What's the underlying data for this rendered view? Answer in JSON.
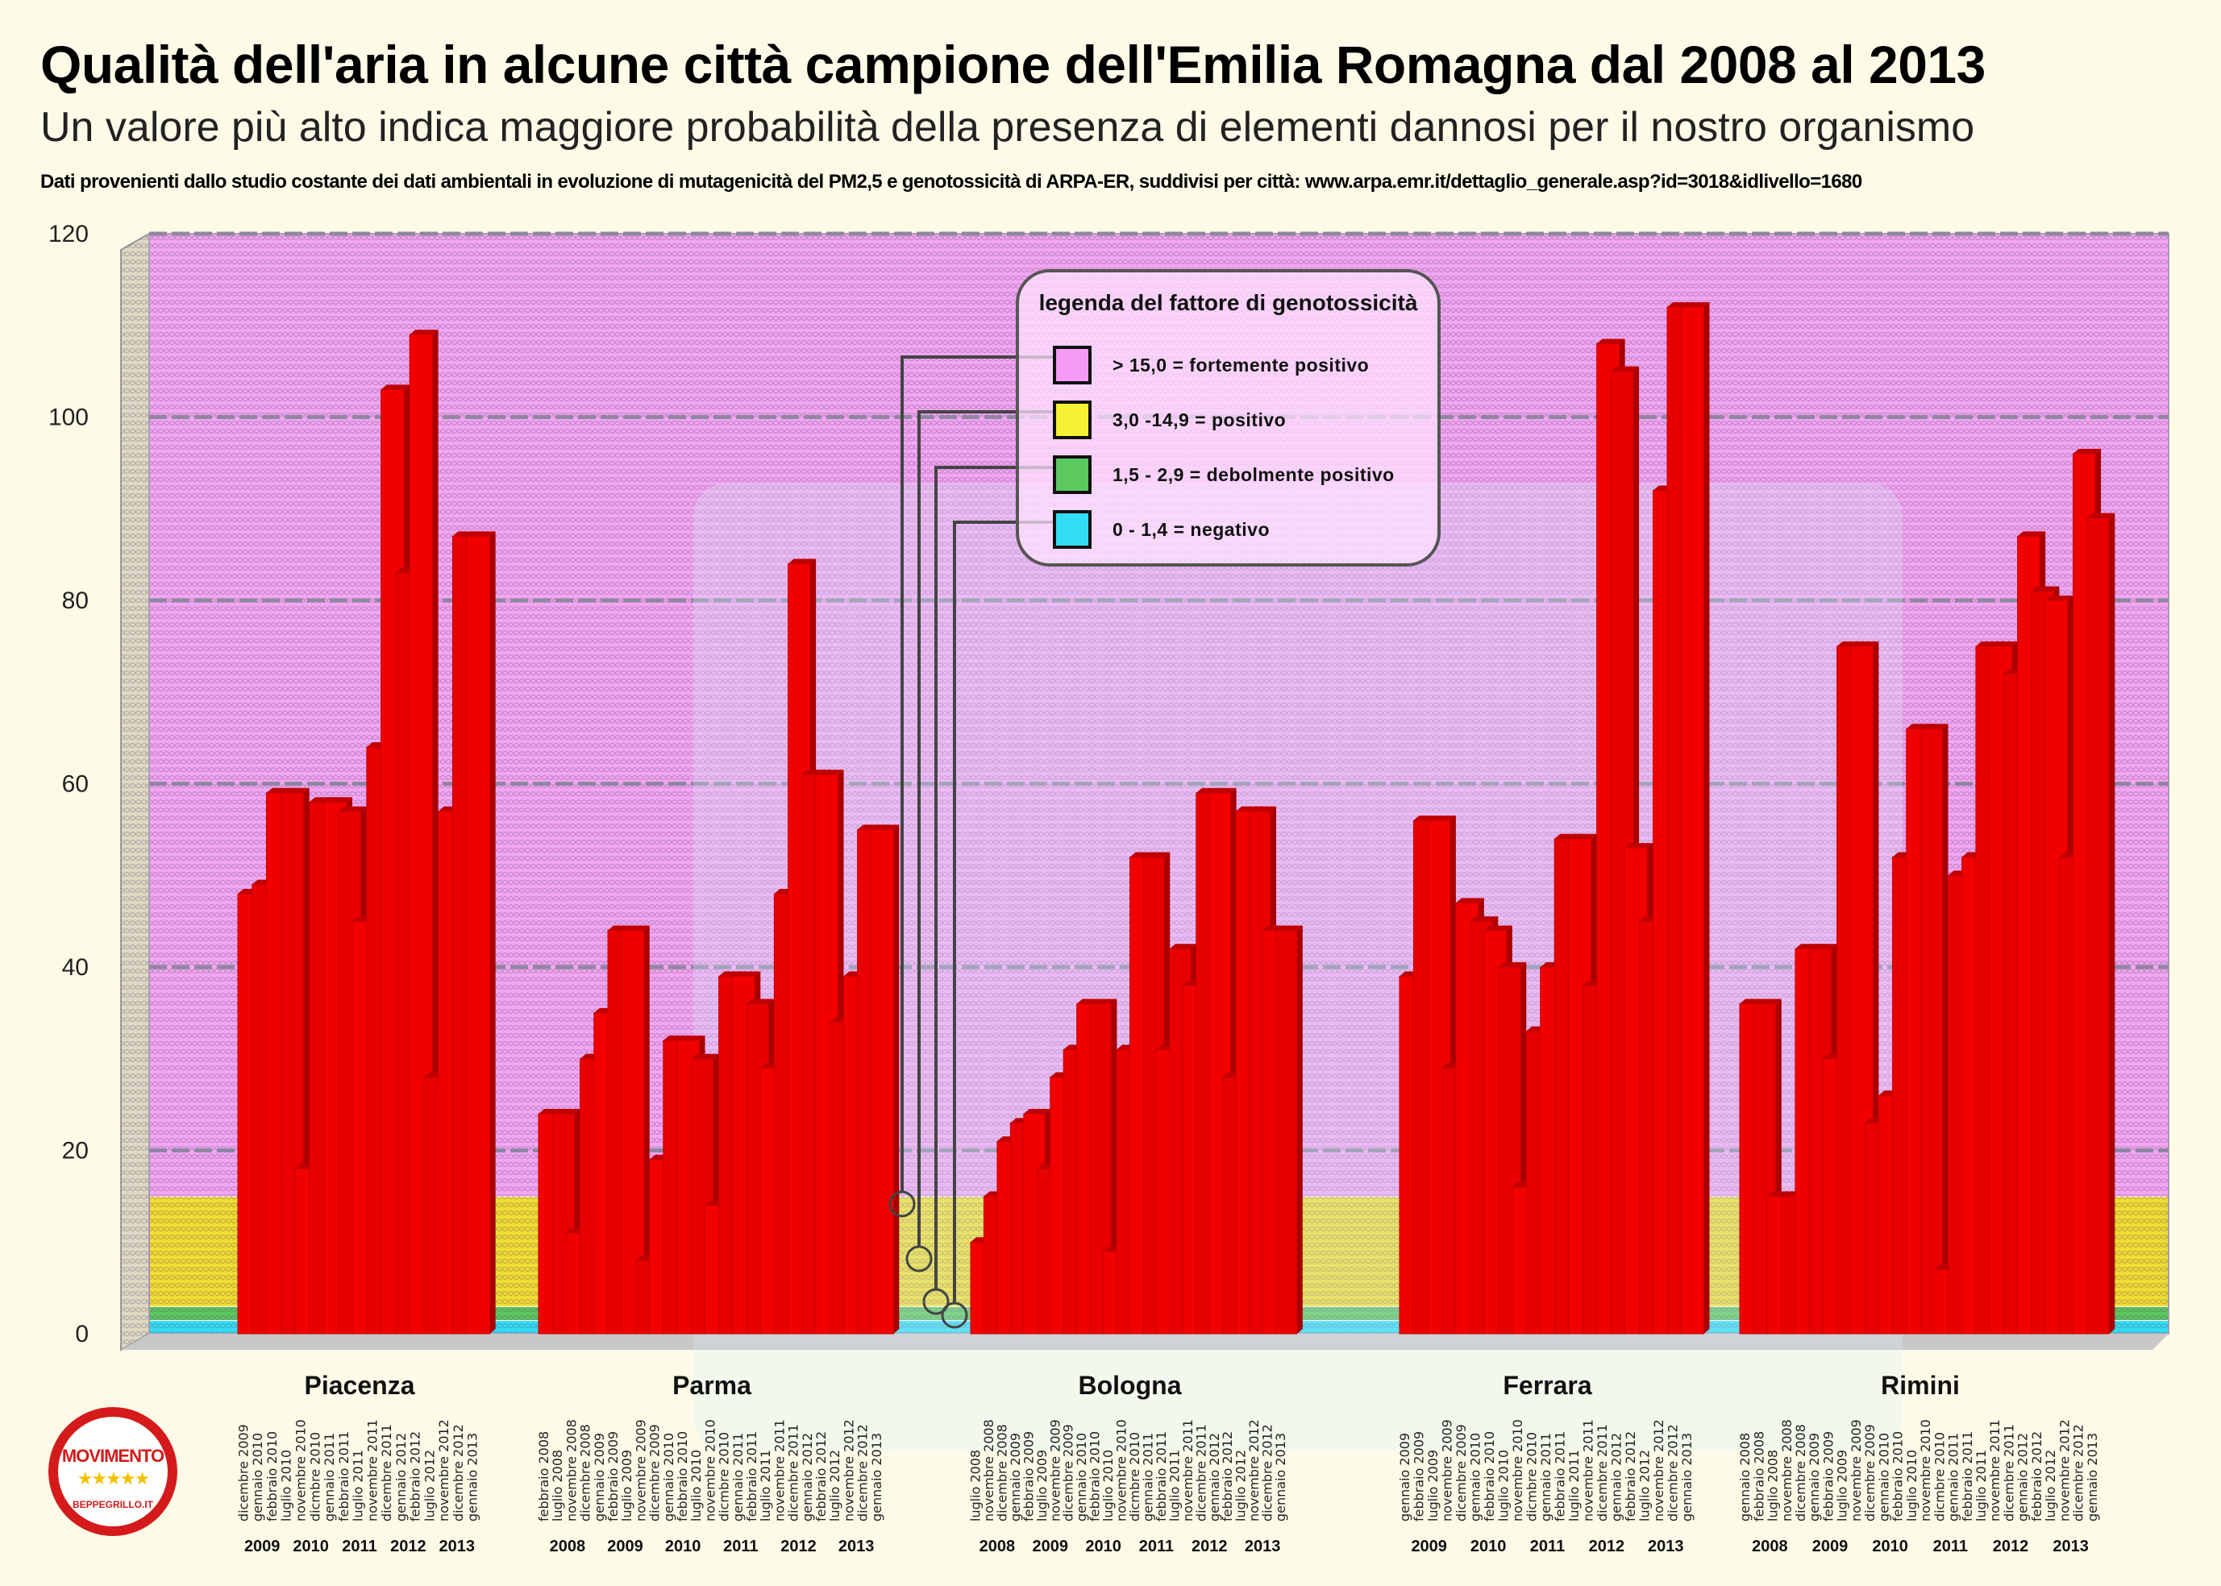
{
  "header": {
    "title": "Qualità  dell'aria in alcune città  campione dell'Emilia Romagna dal 2008 al 2013",
    "subtitle": "Un valore più alto indica maggiore probabilità della presenza di elementi dannosi per il nostro organismo",
    "source": "Dati provenienti dallo studio costante dei dati ambientali in evoluzione di mutagenicità  del PM2,5 e genotossicità  di ARPA-ER, suddivisi per città: www.arpa.emr.it/dettaglio_generale.asp?id=3018&idlivello=1680"
  },
  "legend": {
    "title": "legenda del fattore di genotossicità",
    "items": [
      {
        "label": "> 15,0 = fortemente positivo",
        "color": "#f59af5"
      },
      {
        "label": "3,0 -14,9 = positivo",
        "color": "#f4f232"
      },
      {
        "label": "1,5 - 2,9 = debolmente positivo",
        "color": "#5cc860"
      },
      {
        "label": "0 - 1,4 = negativo",
        "color": "#33ddf5"
      }
    ]
  },
  "logo": {
    "text": "MOVIMENTO",
    "sub": "BEPPEGRILLO.IT"
  },
  "chart_data": {
    "type": "bar",
    "title": "Qualità dell'aria in alcune città campione dell'Emilia Romagna dal 2008 al 2013",
    "ylabel": "",
    "ylim": [
      0,
      120
    ],
    "yticks": [
      0,
      20,
      40,
      60,
      80,
      100,
      120
    ],
    "grid": true,
    "bands": [
      {
        "from": 0,
        "to": 1.4,
        "color": "#33ddf5"
      },
      {
        "from": 1.5,
        "to": 2.9,
        "color": "#5cc860"
      },
      {
        "from": 3.0,
        "to": 14.9,
        "color": "#eedd33"
      },
      {
        "from": 15.0,
        "to": 120,
        "color": "#f2a6f2"
      }
    ],
    "bar_color": "#ee0000",
    "cities": [
      {
        "name": "Piacenza",
        "labels": [
          "dicembre 2009",
          "gennaio 2010",
          "febbraio 2010",
          "luglio 2010",
          "novembre 2010",
          "dicmbre 2010",
          "gennaio 2011",
          "febbraio 2011",
          "luglio 2011",
          "novembre 2011",
          "dicembre 2011",
          "gennaio 2012",
          "febbraio 2012",
          "luglio 2012",
          "novembre 2012",
          "dicembre 2012",
          "gennaio 2013"
        ],
        "values": [
          48,
          49,
          59,
          59,
          18,
          58,
          58,
          57,
          45,
          64,
          103,
          83,
          109,
          28,
          57,
          87,
          87
        ],
        "years": [
          "2009",
          "2010",
          "2011",
          "2012",
          "2013"
        ]
      },
      {
        "name": "Parma",
        "labels": [
          "febbraio 2008",
          "luglio 2008",
          "novembre 2008",
          "dicembre 2008",
          "gennaio 2009",
          "febbraio 2009",
          "luglio 2009",
          "novembre 2009",
          "dicembre 2009",
          "gennaio 2010",
          "febbraio 2010",
          "luglio 2010",
          "novembre 2010",
          "dicmbre 2010",
          "gennaio 2011",
          "febbraio 2011",
          "luglio 2011",
          "novembre 2011",
          "dicembre 2011",
          "gennaio 2012",
          "febbraio 2012",
          "luglio 2012",
          "novembre 2012",
          "dicembre 2012",
          "gennaio 2013"
        ],
        "values": [
          24,
          24,
          11,
          30,
          35,
          44,
          44,
          8,
          19,
          32,
          32,
          30,
          14,
          39,
          39,
          36,
          29,
          48,
          84,
          61,
          61,
          34,
          39,
          55,
          55
        ],
        "years": [
          "2008",
          "2009",
          "2010",
          "2011",
          "2012",
          "2013"
        ]
      },
      {
        "name": "Bologna",
        "labels": [
          "luglio 2008",
          "novembre 2008",
          "dicembre 2008",
          "gennaio 2009",
          "febbraio 2009",
          "luglio 2009",
          "novembre 2009",
          "dicembre 2009",
          "gennaio 2010",
          "febbraio 2010",
          "luglio 2010",
          "novembre 2010",
          "dicmbre 2010",
          "gennaio 2011",
          "febbraio 2011",
          "luglio 2011",
          "novembre 2011",
          "dicembre 2011",
          "gennaio 2012",
          "febbraio 2012",
          "luglio 2012",
          "novembre 2012",
          "dicembre 2012",
          "gennaio 2013"
        ],
        "values": [
          10,
          15,
          21,
          23,
          24,
          18,
          28,
          31,
          36,
          36,
          9,
          31,
          52,
          52,
          31,
          42,
          38,
          59,
          59,
          28,
          57,
          57,
          44,
          44
        ],
        "years": [
          "2008",
          "2009",
          "2010",
          "2011",
          "2012",
          "2013"
        ]
      },
      {
        "name": "Ferrara",
        "labels": [
          "gennaio 2009",
          "febbraio 2009",
          "luglio 2009",
          "novembre 2009",
          "dicembre 2009",
          "gennaio 2010",
          "febbraio 2010",
          "luglio 2010",
          "novembre 2010",
          "dicmbre 2010",
          "gennaio 2011",
          "febbraio 2011",
          "luglio 2011",
          "novembre 2011",
          "dicembre 2011",
          "gennaio 2012",
          "febbraio 2012",
          "luglio 2012",
          "novembre 2012",
          "dicembre 2012",
          "gennaio 2013"
        ],
        "values": [
          39,
          56,
          56,
          29,
          47,
          45,
          44,
          40,
          16,
          33,
          40,
          54,
          54,
          38,
          108,
          105,
          53,
          45,
          92,
          112,
          112
        ],
        "years": [
          "2009",
          "2010",
          "2011",
          "2012",
          "2013"
        ]
      },
      {
        "name": "Rimini",
        "labels": [
          "gennaio 2008",
          "febbraio 2008",
          "luglio 2008",
          "novembre 2008",
          "dicembre 2008",
          "gennaio 2009",
          "febbraio 2009",
          "luglio 2009",
          "novembre 2009",
          "dicembre 2009",
          "gennaio 2010",
          "febbraio 2010",
          "luglio 2010",
          "novembre 2010",
          "dicmbre 2010",
          "gennaio 2011",
          "febbraio 2011",
          "luglio 2011",
          "novembre 2011",
          "dicembre 2011",
          "gennaio 2012",
          "febbraio 2012",
          "luglio 2012",
          "novembre 2012",
          "dicembre 2012",
          "gennaio 2013"
        ],
        "values": [
          36,
          36,
          15,
          15,
          42,
          42,
          30,
          75,
          75,
          23,
          26,
          52,
          66,
          66,
          7,
          50,
          52,
          75,
          75,
          72,
          87,
          81,
          80,
          52,
          96,
          89
        ],
        "years": [
          "2008",
          "2009",
          "2010",
          "2011",
          "2012",
          "2013"
        ]
      }
    ]
  }
}
